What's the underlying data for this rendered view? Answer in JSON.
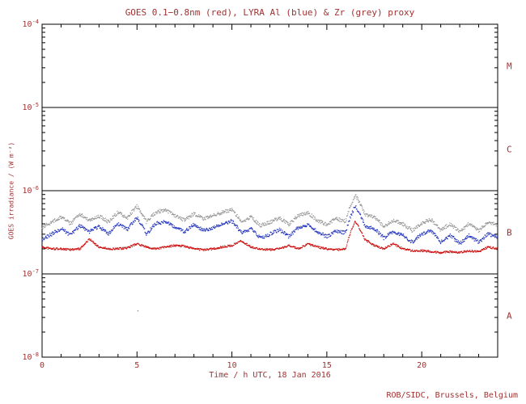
{
  "colors": {
    "text": "#a03232",
    "axis": "#000000",
    "background": "#ffffff"
  },
  "chart_data": {
    "type": "scatter",
    "title": "GOES 0.1−0.8nm (red), LYRA Al (blue) & Zr (grey) proxy",
    "xlabel": "Time / h UTC, 18 Jan 2016",
    "ylabel": "GOES irradiance / (W m⁻²)",
    "credit": "ROB/SIDC, Brussels, Belgium",
    "x_range": [
      0,
      24
    ],
    "x_major_ticks": [
      0,
      5,
      10,
      15,
      20
    ],
    "x_minor_step": 1,
    "y_log_range": [
      -8,
      -4
    ],
    "y_tick_exponents": [
      -4,
      -5,
      -6,
      -7,
      -8
    ],
    "grid": false,
    "legend_position": "none",
    "class_lines": [
      1e-05,
      1e-06,
      1e-07
    ],
    "flare_classes": [
      {
        "label": "M",
        "level": 3.16e-05
      },
      {
        "label": "C",
        "level": 3.16e-06
      },
      {
        "label": "B",
        "level": 3.16e-07
      },
      {
        "label": "A",
        "level": 3.16e-08
      }
    ],
    "x": [
      0,
      0.5,
      1,
      1.5,
      2,
      2.5,
      3,
      3.5,
      4,
      4.5,
      5,
      5.5,
      6,
      6.5,
      7,
      7.5,
      8,
      8.5,
      9,
      9.5,
      10,
      10.5,
      11,
      11.5,
      12,
      12.5,
      13,
      13.5,
      14,
      14.5,
      15,
      15.5,
      16,
      16.5,
      17,
      17.5,
      18,
      18.5,
      19,
      19.5,
      20,
      20.5,
      21,
      21.5,
      22,
      22.5,
      23,
      23.5,
      24
    ],
    "series": [
      {
        "name": "GOES 0.1-0.8nm",
        "color": "#cc1111",
        "values": [
          2.1e-07,
          2e-07,
          2e-07,
          1.95e-07,
          2e-07,
          2.6e-07,
          2.1e-07,
          2e-07,
          2e-07,
          2.05e-07,
          2.3e-07,
          2.1e-07,
          2e-07,
          2.1e-07,
          2.2e-07,
          2.15e-07,
          2e-07,
          1.95e-07,
          2e-07,
          2.1e-07,
          2.2e-07,
          2.5e-07,
          2.1e-07,
          2e-07,
          1.95e-07,
          2e-07,
          2.2e-07,
          2e-07,
          2.3e-07,
          2.1e-07,
          2e-07,
          1.95e-07,
          2e-07,
          4.3e-07,
          2.6e-07,
          2.2e-07,
          2e-07,
          2.3e-07,
          2e-07,
          1.9e-07,
          1.9e-07,
          1.85e-07,
          1.8e-07,
          1.85e-07,
          1.8e-07,
          1.9e-07,
          1.85e-07,
          2.1e-07,
          2e-07
        ]
      },
      {
        "name": "LYRA Al",
        "color": "#2233bb",
        "values": [
          2.6e-07,
          3e-07,
          3.5e-07,
          2.9e-07,
          3.8e-07,
          3.2e-07,
          3.7e-07,
          3e-07,
          4e-07,
          3.4e-07,
          4.7e-07,
          3e-07,
          4e-07,
          4.3e-07,
          3.6e-07,
          3.2e-07,
          3.9e-07,
          3.3e-07,
          3.6e-07,
          4e-07,
          4.3e-07,
          3.1e-07,
          3.5e-07,
          2.7e-07,
          3e-07,
          3.4e-07,
          2.8e-07,
          3.6e-07,
          3.9e-07,
          3.2e-07,
          2.8e-07,
          3.3e-07,
          3.1e-07,
          6.6e-07,
          3.8e-07,
          3.5e-07,
          2.7e-07,
          3.2e-07,
          2.9e-07,
          2.4e-07,
          3e-07,
          3.3e-07,
          2.4e-07,
          2.9e-07,
          2.3e-07,
          2.9e-07,
          2.4e-07,
          3e-07,
          2.8e-07
        ]
      },
      {
        "name": "LYRA Zr",
        "color": "#969696",
        "values": [
          3.6e-07,
          4.2e-07,
          4.8e-07,
          4e-07,
          5.2e-07,
          4.4e-07,
          5e-07,
          4.2e-07,
          5.5e-07,
          4.7e-07,
          6.5e-07,
          4.2e-07,
          5.5e-07,
          5.9e-07,
          5e-07,
          4.4e-07,
          5.3e-07,
          4.6e-07,
          5e-07,
          5.5e-07,
          5.9e-07,
          4.3e-07,
          4.8e-07,
          3.8e-07,
          4.2e-07,
          4.7e-07,
          3.9e-07,
          5e-07,
          5.4e-07,
          4.4e-07,
          3.9e-07,
          4.6e-07,
          4.3e-07,
          8.8e-07,
          5.2e-07,
          4.8e-07,
          3.7e-07,
          4.4e-07,
          4e-07,
          3.3e-07,
          4.1e-07,
          4.5e-07,
          3.3e-07,
          4e-07,
          3.2e-07,
          4e-07,
          3.3e-07,
          4.2e-07,
          3.9e-07
        ]
      }
    ],
    "outliers": [
      {
        "series": "LYRA Zr",
        "x": 5.05,
        "value": 3.6e-08,
        "color": "#969696"
      }
    ]
  }
}
